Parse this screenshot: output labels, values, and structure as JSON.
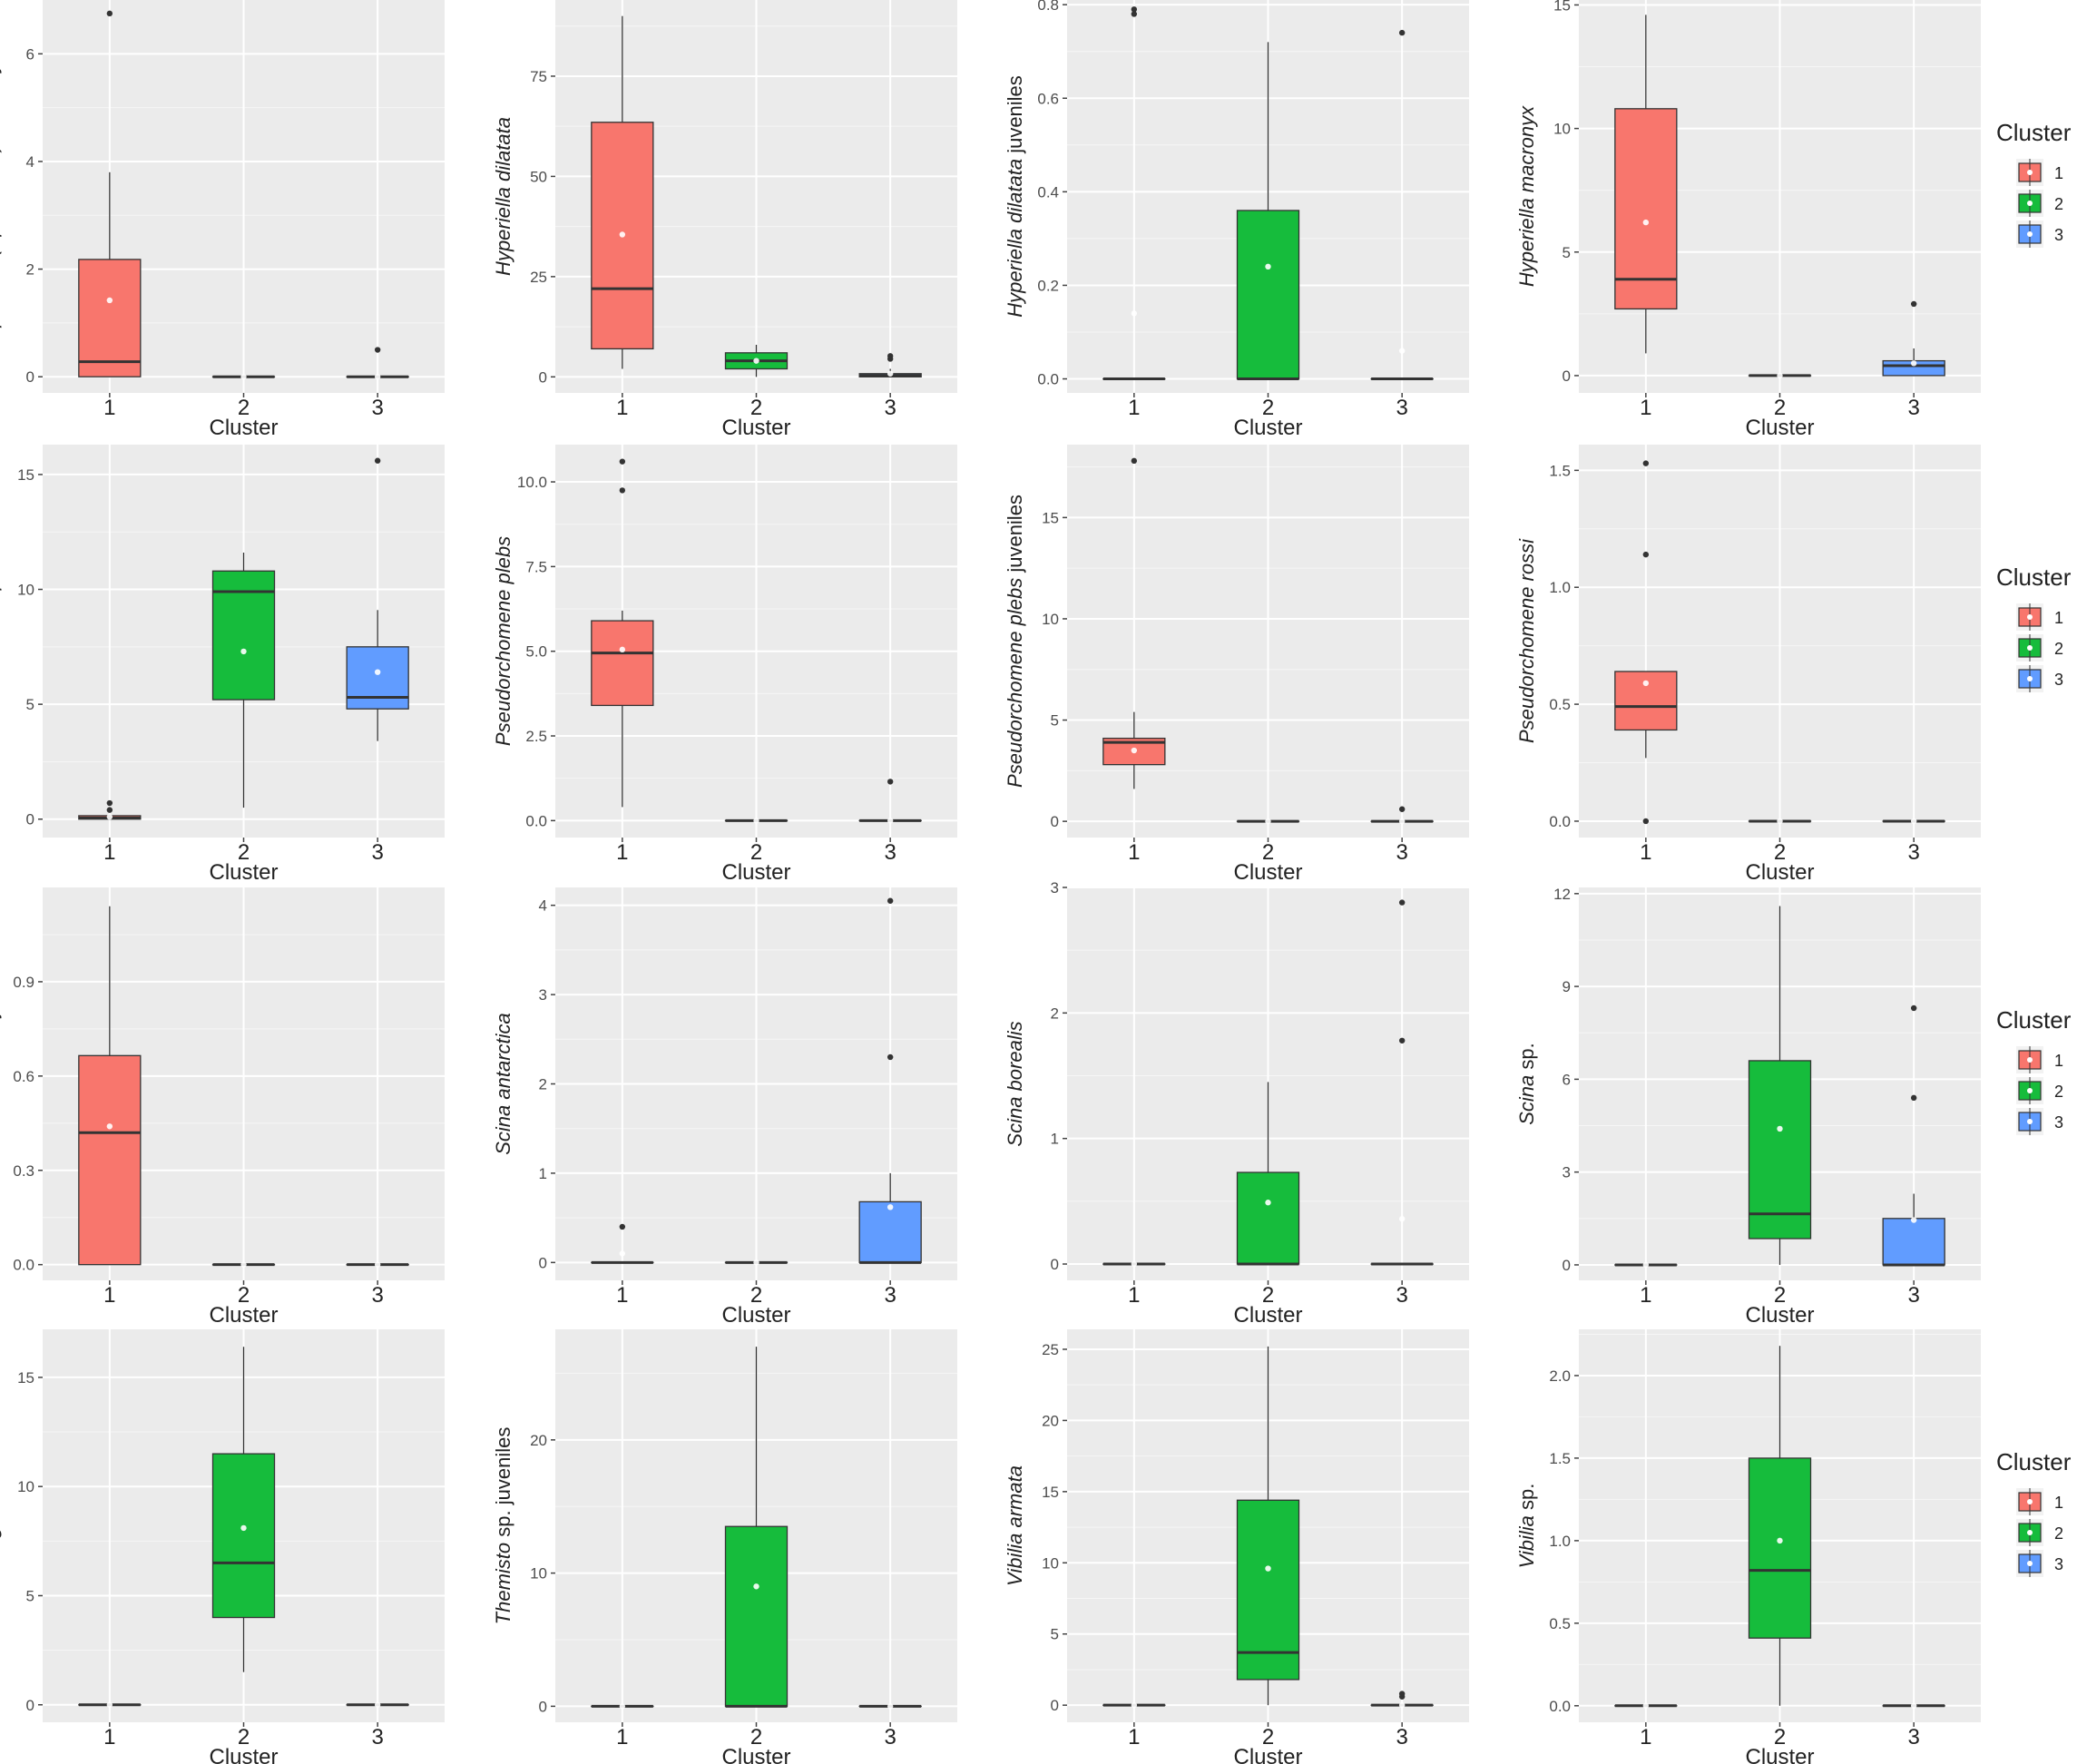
{
  "colors": {
    "cluster1": "#f8766d",
    "cluster2": "#16bc3c",
    "cluster3": "#619cff",
    "panel": "#ebebeb",
    "grid": "#ffffff",
    "median": "#333333",
    "outlier": "#333333",
    "mean": "#ffffff"
  },
  "legend": {
    "title": "Cluster",
    "items": [
      "1",
      "2",
      "3"
    ]
  },
  "chart_data": [
    {
      "type": "box",
      "title": "",
      "xlabel": "Cluster",
      "ylabel": "Epimeria (Epimeriella) macronyx",
      "ylabel_suffix": "",
      "categories": [
        "1",
        "2",
        "3"
      ],
      "ylim": [
        -0.3,
        7.0
      ],
      "yticks": [
        0,
        2,
        4,
        6
      ],
      "yticklabels": [
        "0",
        "2",
        "4",
        "6"
      ],
      "boxes": [
        {
          "min": 0,
          "q1": 0,
          "median": 0.28,
          "q3": 2.18,
          "max": 3.8,
          "mean": 1.42,
          "outliers": [
            6.75
          ]
        },
        {
          "min": 0,
          "q1": 0,
          "median": 0,
          "q3": 0,
          "max": 0,
          "mean": 0,
          "outliers": []
        },
        {
          "min": 0,
          "q1": 0,
          "median": 0,
          "q3": 0,
          "max": 0,
          "mean": 0,
          "outliers": [
            0.5
          ]
        }
      ]
    },
    {
      "type": "box",
      "title": "",
      "xlabel": "Cluster",
      "ylabel": "Hyperiella dilatata",
      "ylabel_suffix": "",
      "categories": [
        "1",
        "2",
        "3"
      ],
      "ylim": [
        -4,
        94
      ],
      "yticks": [
        0,
        25,
        50,
        75
      ],
      "yticklabels": [
        "0",
        "25",
        "50",
        "75"
      ],
      "boxes": [
        {
          "min": 2,
          "q1": 7,
          "median": 22,
          "q3": 63.5,
          "max": 90,
          "mean": 35.5,
          "outliers": []
        },
        {
          "min": 0,
          "q1": 2,
          "median": 4,
          "q3": 6,
          "max": 8,
          "mean": 4,
          "outliers": []
        },
        {
          "min": 0,
          "q1": 0,
          "median": 0.3,
          "q3": 0.8,
          "max": 2,
          "mean": 0.8,
          "outliers": [
            4.5,
            5.2
          ]
        }
      ]
    },
    {
      "type": "box",
      "title": "",
      "xlabel": "Cluster",
      "ylabel": "Hyperiella dilatata",
      "ylabel_suffix": " juveniles",
      "categories": [
        "1",
        "2",
        "3"
      ],
      "ylim": [
        -0.03,
        0.81
      ],
      "yticks": [
        0,
        0.2,
        0.4,
        0.6,
        0.8
      ],
      "yticklabels": [
        "0.0",
        "0.2",
        "0.4",
        "0.6",
        "0.8"
      ],
      "boxes": [
        {
          "min": 0,
          "q1": 0,
          "median": 0,
          "q3": 0,
          "max": 0,
          "mean": 0.14,
          "outliers": [
            0.78,
            0.79
          ]
        },
        {
          "min": 0,
          "q1": 0,
          "median": 0,
          "q3": 0.36,
          "max": 0.72,
          "mean": 0.24,
          "outliers": []
        },
        {
          "min": 0,
          "q1": 0,
          "median": 0,
          "q3": 0,
          "max": 0,
          "mean": 0.06,
          "outliers": [
            0.74
          ]
        }
      ]
    },
    {
      "type": "box",
      "title": "",
      "xlabel": "Cluster",
      "ylabel": "Hyperiella macronyx",
      "ylabel_suffix": "",
      "categories": [
        "1",
        "2",
        "3"
      ],
      "ylim": [
        -0.7,
        15.2
      ],
      "yticks": [
        0,
        5,
        10,
        15
      ],
      "yticklabels": [
        "0",
        "5",
        "10",
        "15"
      ],
      "boxes": [
        {
          "min": 0.9,
          "q1": 2.7,
          "median": 3.9,
          "q3": 10.8,
          "max": 14.6,
          "mean": 6.2,
          "outliers": []
        },
        {
          "min": 0,
          "q1": 0,
          "median": 0,
          "q3": 0,
          "max": 0,
          "mean": 0,
          "outliers": []
        },
        {
          "min": 0,
          "q1": 0,
          "median": 0.4,
          "q3": 0.6,
          "max": 1.1,
          "mean": 0.5,
          "outliers": [
            2.9
          ]
        }
      ]
    },
    {
      "type": "box",
      "title": "",
      "xlabel": "Cluster",
      "ylabel": "Primno macropa",
      "ylabel_suffix": "",
      "categories": [
        "1",
        "2",
        "3"
      ],
      "ylim": [
        -0.8,
        16.3
      ],
      "yticks": [
        0,
        5,
        10,
        15
      ],
      "yticklabels": [
        "0",
        "5",
        "10",
        "15"
      ],
      "boxes": [
        {
          "min": 0,
          "q1": 0,
          "median": 0.05,
          "q3": 0.15,
          "max": 0.2,
          "mean": 0.1,
          "outliers": [
            0.4,
            0.7
          ]
        },
        {
          "min": 0.5,
          "q1": 5.2,
          "median": 9.9,
          "q3": 10.8,
          "max": 11.6,
          "mean": 7.3,
          "outliers": []
        },
        {
          "min": 3.4,
          "q1": 4.8,
          "median": 5.3,
          "q3": 7.5,
          "max": 9.1,
          "mean": 6.4,
          "outliers": [
            15.6
          ]
        }
      ]
    },
    {
      "type": "box",
      "title": "",
      "xlabel": "Cluster",
      "ylabel": "Pseudorchomene plebs",
      "ylabel_suffix": "",
      "categories": [
        "1",
        "2",
        "3"
      ],
      "ylim": [
        -0.5,
        11.1
      ],
      "yticks": [
        0,
        2.5,
        5,
        7.5,
        10
      ],
      "yticklabels": [
        "0.0",
        "2.5",
        "5.0",
        "7.5",
        "10.0"
      ],
      "boxes": [
        {
          "min": 0.4,
          "q1": 3.4,
          "median": 4.95,
          "q3": 5.9,
          "max": 6.2,
          "mean": 5.05,
          "outliers": [
            9.75,
            10.6
          ]
        },
        {
          "min": 0,
          "q1": 0,
          "median": 0,
          "q3": 0,
          "max": 0,
          "mean": 0,
          "outliers": []
        },
        {
          "min": 0,
          "q1": 0,
          "median": 0,
          "q3": 0,
          "max": 0,
          "mean": 0,
          "outliers": [
            1.15
          ]
        }
      ]
    },
    {
      "type": "box",
      "title": "",
      "xlabel": "Cluster",
      "ylabel": "Pseudorchomene plebs",
      "ylabel_suffix": " juveniles",
      "categories": [
        "1",
        "2",
        "3"
      ],
      "ylim": [
        -0.8,
        18.6
      ],
      "yticks": [
        0,
        5,
        10,
        15
      ],
      "yticklabels": [
        "0",
        "5",
        "10",
        "15"
      ],
      "boxes": [
        {
          "min": 1.6,
          "q1": 2.8,
          "median": 3.9,
          "q3": 4.1,
          "max": 5.4,
          "mean": 3.5,
          "outliers": [
            17.8
          ]
        },
        {
          "min": 0,
          "q1": 0,
          "median": 0,
          "q3": 0,
          "max": 0,
          "mean": 0,
          "outliers": []
        },
        {
          "min": 0,
          "q1": 0,
          "median": 0,
          "q3": 0,
          "max": 0,
          "mean": 0,
          "outliers": [
            0.6
          ]
        }
      ]
    },
    {
      "type": "box",
      "title": "",
      "xlabel": "Cluster",
      "ylabel": "Pseudorchomene rossi",
      "ylabel_suffix": "",
      "categories": [
        "1",
        "2",
        "3"
      ],
      "ylim": [
        -0.07,
        1.61
      ],
      "yticks": [
        0,
        0.5,
        1,
        1.5
      ],
      "yticklabels": [
        "0.0",
        "0.5",
        "1.0",
        "1.5"
      ],
      "boxes": [
        {
          "min": 0.27,
          "q1": 0.39,
          "median": 0.49,
          "q3": 0.64,
          "max": 0.64,
          "mean": 0.59,
          "outliers": [
            0,
            1.14,
            1.53
          ]
        },
        {
          "min": 0,
          "q1": 0,
          "median": 0,
          "q3": 0,
          "max": 0,
          "mean": 0,
          "outliers": []
        },
        {
          "min": 0,
          "q1": 0,
          "median": 0,
          "q3": 0,
          "max": 0,
          "mean": 0,
          "outliers": []
        }
      ]
    },
    {
      "type": "box",
      "title": "",
      "xlabel": "Cluster",
      "ylabel": "Pseudorchomene rossi",
      "ylabel_suffix": " juveniles",
      "categories": [
        "1",
        "2",
        "3"
      ],
      "ylim": [
        -0.05,
        1.2
      ],
      "yticks": [
        0,
        0.3,
        0.6,
        0.9
      ],
      "yticklabels": [
        "0.0",
        "0.3",
        "0.6",
        "0.9"
      ],
      "boxes": [
        {
          "min": 0,
          "q1": 0,
          "median": 0.42,
          "q3": 0.665,
          "max": 1.14,
          "mean": 0.44,
          "outliers": []
        },
        {
          "min": 0,
          "q1": 0,
          "median": 0,
          "q3": 0,
          "max": 0,
          "mean": 0,
          "outliers": []
        },
        {
          "min": 0,
          "q1": 0,
          "median": 0,
          "q3": 0,
          "max": 0,
          "mean": 0,
          "outliers": []
        }
      ]
    },
    {
      "type": "box",
      "title": "",
      "xlabel": "Cluster",
      "ylabel": "Scina antarctica",
      "ylabel_suffix": "",
      "categories": [
        "1",
        "2",
        "3"
      ],
      "ylim": [
        -0.2,
        4.2
      ],
      "yticks": [
        0,
        1,
        2,
        3,
        4
      ],
      "yticklabels": [
        "0",
        "1",
        "2",
        "3",
        "4"
      ],
      "boxes": [
        {
          "min": 0,
          "q1": 0,
          "median": 0,
          "q3": 0,
          "max": 0,
          "mean": 0.1,
          "outliers": [
            0.4
          ]
        },
        {
          "min": 0,
          "q1": 0,
          "median": 0,
          "q3": 0,
          "max": 0,
          "mean": 0,
          "outliers": []
        },
        {
          "min": 0,
          "q1": 0,
          "median": 0,
          "q3": 0.68,
          "max": 1.0,
          "mean": 0.62,
          "outliers": [
            2.3,
            4.05
          ]
        }
      ]
    },
    {
      "type": "box",
      "title": "",
      "xlabel": "Cluster",
      "ylabel": "Scina borealis",
      "ylabel_suffix": "",
      "categories": [
        "1",
        "2",
        "3"
      ],
      "ylim": [
        -0.13,
        3.0
      ],
      "yticks": [
        0,
        1,
        2,
        3
      ],
      "yticklabels": [
        "0",
        "1",
        "2",
        "3"
      ],
      "boxes": [
        {
          "min": 0,
          "q1": 0,
          "median": 0,
          "q3": 0,
          "max": 0,
          "mean": 0,
          "outliers": []
        },
        {
          "min": 0,
          "q1": 0,
          "median": 0,
          "q3": 0.73,
          "max": 1.45,
          "mean": 0.49,
          "outliers": []
        },
        {
          "min": 0,
          "q1": 0,
          "median": 0,
          "q3": 0,
          "max": 0,
          "mean": 0.36,
          "outliers": [
            1.78,
            2.88
          ]
        }
      ]
    },
    {
      "type": "box",
      "title": "",
      "xlabel": "Cluster",
      "ylabel": "Scina",
      "ylabel_suffix": " sp.",
      "categories": [
        "1",
        "2",
        "3"
      ],
      "ylim": [
        -0.5,
        12.2
      ],
      "yticks": [
        0,
        3,
        6,
        9,
        12
      ],
      "yticklabels": [
        "0",
        "3",
        "6",
        "9",
        "12"
      ],
      "boxes": [
        {
          "min": 0,
          "q1": 0,
          "median": 0,
          "q3": 0,
          "max": 0,
          "mean": 0,
          "outliers": []
        },
        {
          "min": 0,
          "q1": 0.85,
          "median": 1.65,
          "q3": 6.6,
          "max": 11.6,
          "mean": 4.4,
          "outliers": []
        },
        {
          "min": 0,
          "q1": 0,
          "median": 0,
          "q3": 1.5,
          "max": 2.3,
          "mean": 1.45,
          "outliers": [
            5.4,
            8.3
          ]
        }
      ]
    },
    {
      "type": "box",
      "title": "",
      "xlabel": "Cluster",
      "ylabel": "Themisto gaudichaudii",
      "ylabel_suffix": "",
      "categories": [
        "1",
        "2",
        "3"
      ],
      "ylim": [
        -0.8,
        17.2
      ],
      "yticks": [
        0,
        5,
        10,
        15
      ],
      "yticklabels": [
        "0",
        "5",
        "10",
        "15"
      ],
      "boxes": [
        {
          "min": 0,
          "q1": 0,
          "median": 0,
          "q3": 0,
          "max": 0,
          "mean": 0,
          "outliers": []
        },
        {
          "min": 1.5,
          "q1": 4.0,
          "median": 6.5,
          "q3": 11.5,
          "max": 16.4,
          "mean": 8.1,
          "outliers": []
        },
        {
          "min": 0,
          "q1": 0,
          "median": 0,
          "q3": 0,
          "max": 0,
          "mean": 0,
          "outliers": []
        }
      ]
    },
    {
      "type": "box",
      "title": "",
      "xlabel": "Cluster",
      "ylabel": "Themisto",
      "ylabel_suffix": " sp. juveniles",
      "categories": [
        "1",
        "2",
        "3"
      ],
      "ylim": [
        -1.2,
        28.3
      ],
      "yticks": [
        0,
        10,
        20
      ],
      "yticklabels": [
        "0",
        "10",
        "20"
      ],
      "boxes": [
        {
          "min": 0,
          "q1": 0,
          "median": 0,
          "q3": 0,
          "max": 0,
          "mean": 0,
          "outliers": []
        },
        {
          "min": 0,
          "q1": 0,
          "median": 0,
          "q3": 13.5,
          "max": 27.0,
          "mean": 9.0,
          "outliers": []
        },
        {
          "min": 0,
          "q1": 0,
          "median": 0,
          "q3": 0,
          "max": 0,
          "mean": 0,
          "outliers": []
        }
      ]
    },
    {
      "type": "box",
      "title": "",
      "xlabel": "Cluster",
      "ylabel": "Vibilia armata",
      "ylabel_suffix": "",
      "categories": [
        "1",
        "2",
        "3"
      ],
      "ylim": [
        -1.2,
        26.4
      ],
      "yticks": [
        0,
        5,
        10,
        15,
        20,
        25
      ],
      "yticklabels": [
        "0",
        "5",
        "10",
        "15",
        "20",
        "25"
      ],
      "boxes": [
        {
          "min": 0,
          "q1": 0,
          "median": 0,
          "q3": 0,
          "max": 0,
          "mean": 0,
          "outliers": []
        },
        {
          "min": 0,
          "q1": 1.8,
          "median": 3.7,
          "q3": 14.4,
          "max": 25.2,
          "mean": 9.6,
          "outliers": []
        },
        {
          "min": 0,
          "q1": 0,
          "median": 0,
          "q3": 0,
          "max": 0,
          "mean": 0,
          "outliers": [
            0.6,
            0.8
          ]
        }
      ]
    },
    {
      "type": "box",
      "title": "",
      "xlabel": "Cluster",
      "ylabel": "Vibilia",
      "ylabel_suffix": " sp.",
      "categories": [
        "1",
        "2",
        "3"
      ],
      "ylim": [
        -0.1,
        2.28
      ],
      "yticks": [
        0,
        0.5,
        1,
        1.5,
        2
      ],
      "yticklabels": [
        "0.0",
        "0.5",
        "1.0",
        "1.5",
        "2.0"
      ],
      "boxes": [
        {
          "min": 0,
          "q1": 0,
          "median": 0,
          "q3": 0,
          "max": 0,
          "mean": 0,
          "outliers": []
        },
        {
          "min": 0,
          "q1": 0.41,
          "median": 0.82,
          "q3": 1.5,
          "max": 2.18,
          "mean": 1.0,
          "outliers": []
        },
        {
          "min": 0,
          "q1": 0,
          "median": 0,
          "q3": 0,
          "max": 0,
          "mean": 0,
          "outliers": []
        }
      ]
    }
  ]
}
